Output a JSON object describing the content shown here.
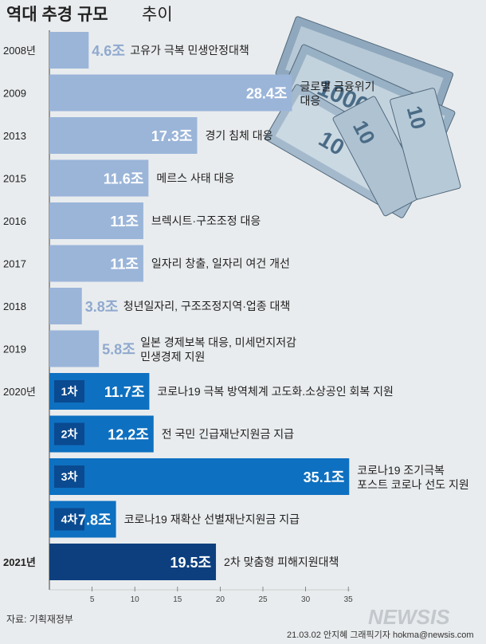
{
  "title_main": "역대 추경 규모",
  "title_sub": "추이",
  "source": "자료: 기획재정부",
  "credit": "21.03.02 안지혜 그래픽기자 hokma@newsis.com",
  "brand": "NEWSIS",
  "colors": {
    "light": "#9bb5d9",
    "light_text": "#8fa9cf",
    "mid": "#0e70c0",
    "mid_text": "#2c86cf",
    "dark": "#0d3f7f",
    "background": "#e9ecee",
    "axis": "#606060"
  },
  "chart_data": {
    "type": "bar",
    "orientation": "horizontal",
    "xlim": [
      0,
      36
    ],
    "xticks": [
      5,
      10,
      15,
      20,
      25,
      30,
      35
    ],
    "rows": [
      {
        "year": "2008년",
        "badge": "",
        "value": 4.6,
        "label": "4.6조",
        "desc": [
          "고유가 극복 민생안정대책"
        ],
        "style": "light"
      },
      {
        "year": "2009",
        "badge": "",
        "value": 28.4,
        "label": "28.4조",
        "desc": [
          "글로벌 금융위기",
          "대응"
        ],
        "style": "light"
      },
      {
        "year": "2013",
        "badge": "",
        "value": 17.3,
        "label": "17.3조",
        "desc": [
          "경기 침체 대응"
        ],
        "style": "light"
      },
      {
        "year": "2015",
        "badge": "",
        "value": 11.6,
        "label": "11.6조",
        "desc": [
          "메르스 사태 대응"
        ],
        "style": "light"
      },
      {
        "year": "2016",
        "badge": "",
        "value": 11,
        "label": "11조",
        "desc": [
          "브렉시트·구조조정 대응"
        ],
        "style": "light"
      },
      {
        "year": "2017",
        "badge": "",
        "value": 11,
        "label": "11조",
        "desc": [
          "일자리 창출, 일자리 여건 개선"
        ],
        "style": "light"
      },
      {
        "year": "2018",
        "badge": "",
        "value": 3.8,
        "label": "3.8조",
        "desc": [
          "청년일자리, 구조조정지역·업종 대책"
        ],
        "style": "light"
      },
      {
        "year": "2019",
        "badge": "",
        "value": 5.8,
        "label": "5.8조",
        "desc": [
          "일본 경제보복 대응, 미세먼지저감",
          "민생경제 지원"
        ],
        "style": "light"
      },
      {
        "year": "2020년",
        "badge": "1차",
        "value": 11.7,
        "label": "11.7조",
        "desc": [
          "코로나19 극복 방역체계 고도화.소상공인 회복 지원"
        ],
        "style": "mid"
      },
      {
        "year": "",
        "badge": "2차",
        "value": 12.2,
        "label": "12.2조",
        "desc": [
          "전 국민 긴급재난지원금 지급"
        ],
        "style": "mid"
      },
      {
        "year": "",
        "badge": "3차",
        "value": 35.1,
        "label": "35.1조",
        "desc": [
          "코로나19 조기극복",
          "포스트 코로나 선도 지원"
        ],
        "style": "mid"
      },
      {
        "year": "",
        "badge": "4차",
        "value": 7.8,
        "label": "7.8조",
        "desc": [
          "코로나19 재확산 선별재난지원금 지급"
        ],
        "style": "mid"
      },
      {
        "year": "2021년",
        "badge": "",
        "value": 19.5,
        "label": "19.5조",
        "desc": [
          "2차 맞춤형 피해지원대책"
        ],
        "style": "dark"
      }
    ]
  }
}
